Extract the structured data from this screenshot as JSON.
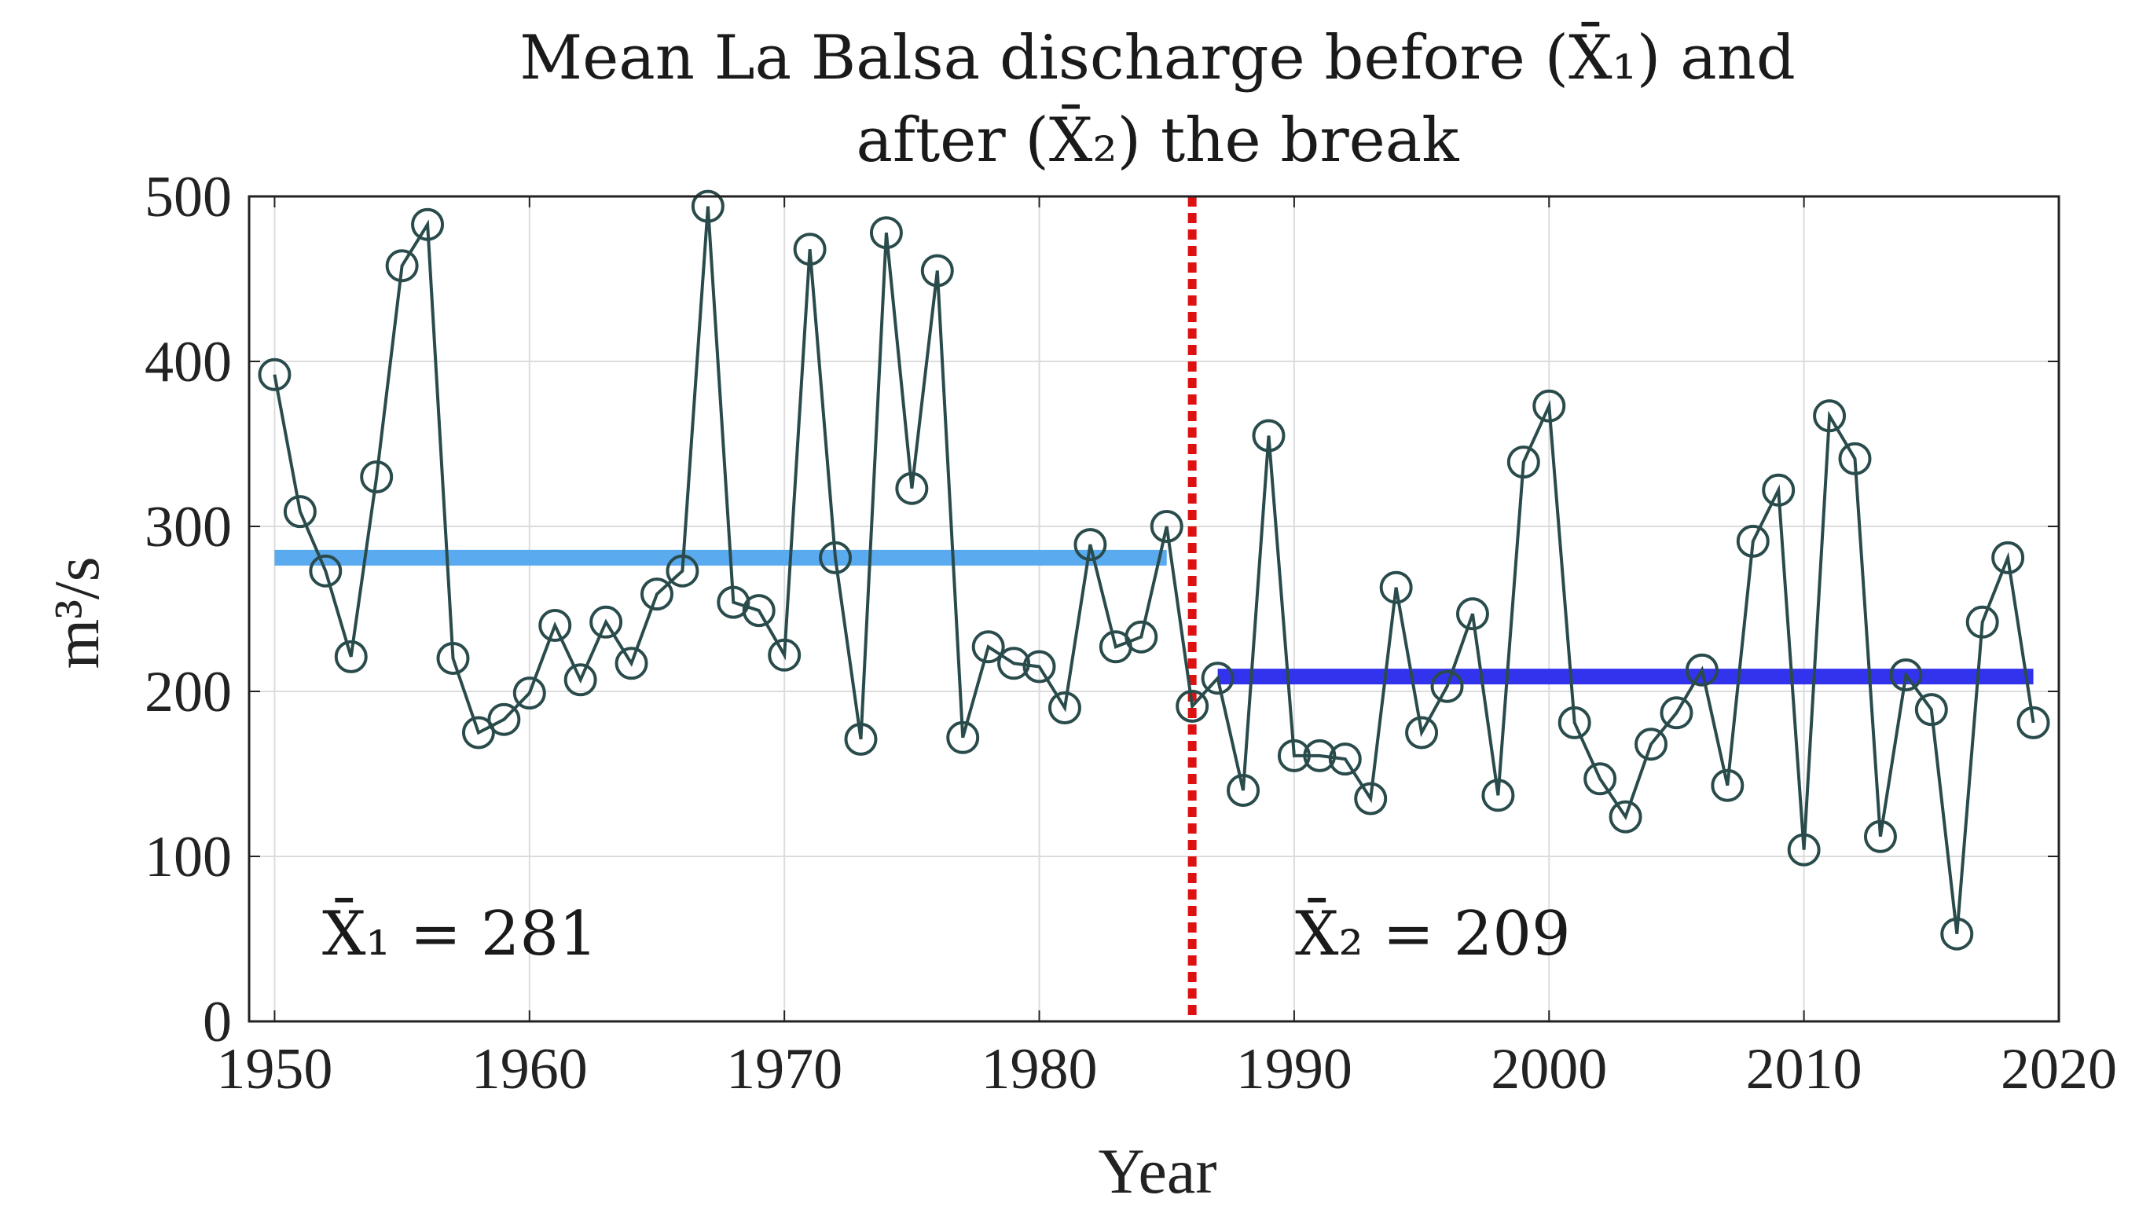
{
  "chart_data": {
    "type": "line",
    "title_line1": "Mean La Balsa discharge before (X̄₁) and",
    "title_line2": "after (X̄₂) the break",
    "xlabel": "Year",
    "ylabel": "m³/s",
    "xlim": [
      1949,
      2020
    ],
    "ylim": [
      0,
      500
    ],
    "xticks": [
      1950,
      1960,
      1970,
      1980,
      1990,
      2000,
      2010,
      2020
    ],
    "yticks": [
      0,
      100,
      200,
      300,
      400,
      500
    ],
    "grid": true,
    "x": [
      1950,
      1951,
      1952,
      1953,
      1954,
      1955,
      1956,
      1957,
      1958,
      1959,
      1960,
      1961,
      1962,
      1963,
      1964,
      1965,
      1966,
      1967,
      1968,
      1969,
      1970,
      1971,
      1972,
      1973,
      1974,
      1975,
      1976,
      1977,
      1978,
      1979,
      1980,
      1981,
      1982,
      1983,
      1984,
      1985,
      1986,
      1987,
      1988,
      1989,
      1990,
      1991,
      1992,
      1993,
      1994,
      1995,
      1996,
      1997,
      1998,
      1999,
      2000,
      2001,
      2002,
      2003,
      2004,
      2005,
      2006,
      2007,
      2008,
      2009,
      2010,
      2011,
      2012,
      2013,
      2014,
      2015,
      2016,
      2017,
      2018,
      2019
    ],
    "values": [
      392,
      309,
      273,
      221,
      330,
      458,
      483,
      220,
      175,
      183,
      199,
      240,
      207,
      242,
      217,
      259,
      273,
      494,
      254,
      249,
      222,
      468,
      281,
      171,
      478,
      323,
      455,
      172,
      227,
      217,
      215,
      190,
      289,
      227,
      233,
      300,
      191,
      208,
      140,
      355,
      161,
      161,
      159,
      135,
      263,
      175,
      203,
      247,
      137,
      339,
      373,
      181,
      147,
      124,
      168,
      187,
      213,
      143,
      291,
      322,
      104,
      367,
      341,
      112,
      210,
      189,
      53,
      242,
      281,
      181
    ],
    "break_year": 1986,
    "mean_before": {
      "value": 281,
      "from": 1950,
      "to": 1985,
      "label": "X̄₁ = 281",
      "color": "#5aaaf0"
    },
    "mean_after": {
      "value": 209,
      "from": 1987,
      "to": 2019,
      "label": "X̄₂ = 209",
      "color": "#3333ee"
    },
    "series_color": "#2a4b4b",
    "break_color": "#dd1111"
  }
}
